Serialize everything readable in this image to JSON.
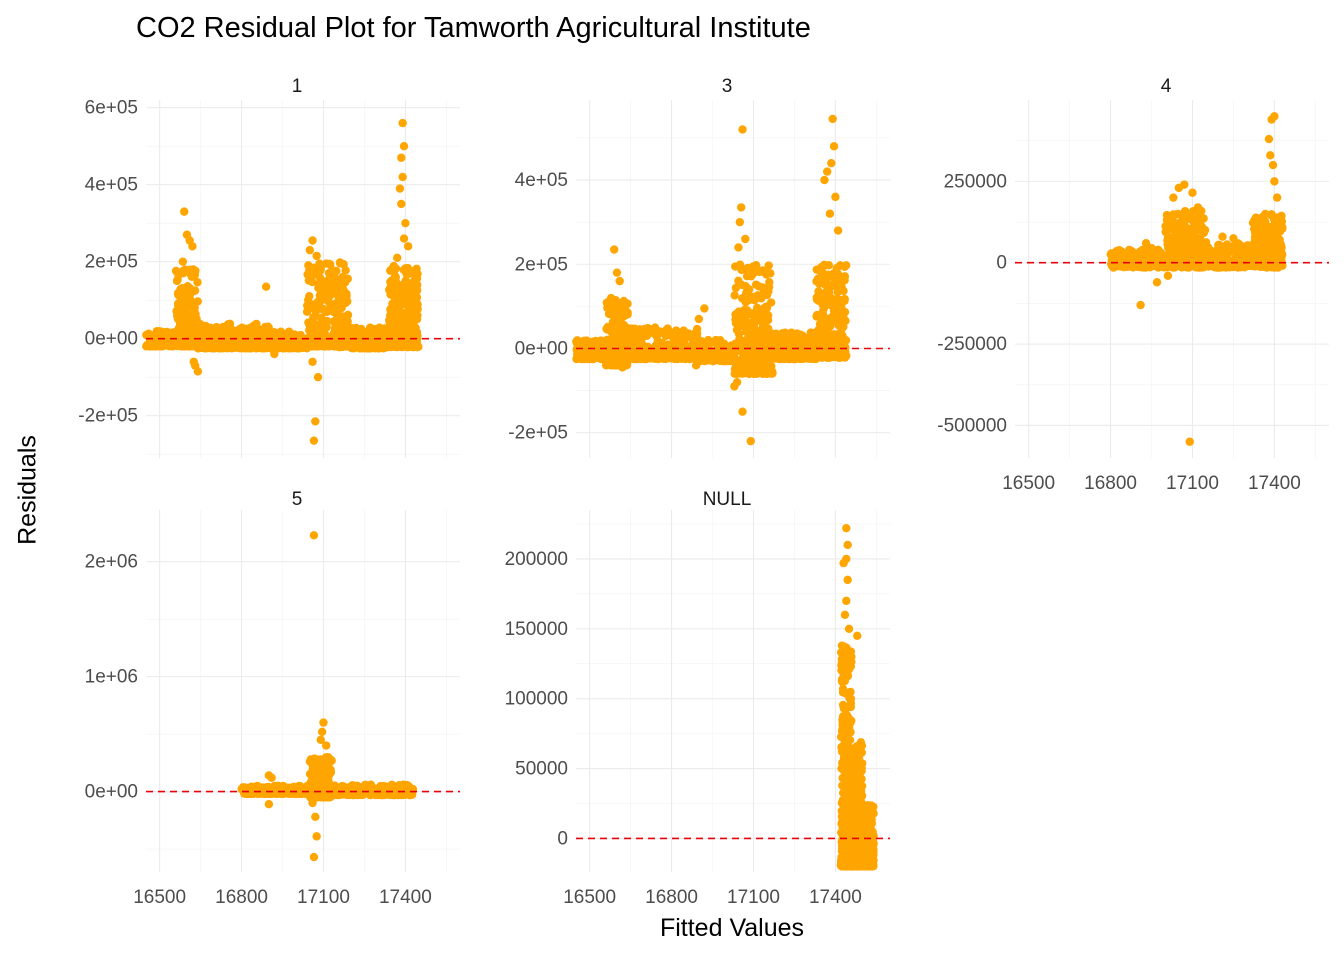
{
  "chart_data": {
    "type": "scatter",
    "title": "CO2 Residual Plot for Tamworth Agricultural Institute",
    "xlabel": "Fitted Values",
    "ylabel": "Residuals",
    "facet_layout": "3 columns x 2 rows, shared x axis, free y axis",
    "point_color": "#FFA500",
    "reference_line": {
      "y": 0,
      "color": "#E8000B",
      "style": "dashed"
    },
    "grid": true,
    "x_ticks": [
      16500,
      16800,
      17100,
      17400
    ],
    "xlim": [
      16450,
      17600
    ],
    "panels": [
      {
        "label": "1",
        "ylim": [
          -310000,
          620000
        ],
        "y_ticks": [
          -200000,
          0,
          200000,
          400000,
          600000
        ],
        "y_tick_labels": [
          "-2e+05",
          "0e+00",
          "2e+05",
          "4e+05",
          "6e+05"
        ],
        "show_x_axis": false,
        "clusters": [
          {
            "x": [
              16450,
              16560
            ],
            "y": [
              -20000,
              20000
            ],
            "n": 120
          },
          {
            "x": [
              16560,
              16640
            ],
            "y": [
              -20000,
              180000
            ],
            "n": 220
          },
          {
            "x": [
              16640,
              16900
            ],
            "y": [
              -25000,
              40000
            ],
            "n": 260
          },
          {
            "x": [
              16900,
              17040
            ],
            "y": [
              -25000,
              20000
            ],
            "n": 120
          },
          {
            "x": [
              17040,
              17190
            ],
            "y": [
              -20000,
              200000
            ],
            "n": 280
          },
          {
            "x": [
              17190,
              17340
            ],
            "y": [
              -25000,
              30000
            ],
            "n": 180
          },
          {
            "x": [
              17340,
              17445
            ],
            "y": [
              -20000,
              190000
            ],
            "n": 280
          },
          {
            "x": [
              17150,
              17450
            ],
            "y": [
              -22000,
              -15000
            ],
            "n": 80
          }
        ],
        "points": [
          [
            16590,
            330000
          ],
          [
            16600,
            270000
          ],
          [
            16610,
            255000
          ],
          [
            16620,
            240000
          ],
          [
            16585,
            200000
          ],
          [
            16625,
            -60000
          ],
          [
            16640,
            -85000
          ],
          [
            16630,
            -70000
          ],
          [
            16890,
            135000
          ],
          [
            16920,
            -40000
          ],
          [
            17060,
            255000
          ],
          [
            17050,
            230000
          ],
          [
            17075,
            215000
          ],
          [
            17110,
            195000
          ],
          [
            17090,
            180000
          ],
          [
            17140,
            160000
          ],
          [
            17060,
            -60000
          ],
          [
            17080,
            -100000
          ],
          [
            17070,
            -215000
          ],
          [
            17065,
            -265000
          ],
          [
            17390,
            560000
          ],
          [
            17395,
            500000
          ],
          [
            17385,
            470000
          ],
          [
            17390,
            420000
          ],
          [
            17380,
            390000
          ],
          [
            17385,
            350000
          ],
          [
            17400,
            300000
          ],
          [
            17395,
            260000
          ],
          [
            17410,
            240000
          ],
          [
            17370,
            210000
          ]
        ]
      },
      {
        "label": "3",
        "ylim": [
          -260000,
          590000
        ],
        "y_ticks": [
          -200000,
          0,
          200000,
          400000
        ],
        "y_tick_labels": [
          "-2e+05",
          "0e+00",
          "2e+05",
          "4e+05"
        ],
        "show_x_axis": false,
        "clusters": [
          {
            "x": [
              16450,
              16560
            ],
            "y": [
              -25000,
              20000
            ],
            "n": 120
          },
          {
            "x": [
              16560,
              16640
            ],
            "y": [
              -40000,
              120000
            ],
            "n": 200
          },
          {
            "x": [
              16640,
              16900
            ],
            "y": [
              -25000,
              50000
            ],
            "n": 240
          },
          {
            "x": [
              16900,
              17030
            ],
            "y": [
              -30000,
              20000
            ],
            "n": 120
          },
          {
            "x": [
              17030,
              17170
            ],
            "y": [
              -60000,
              200000
            ],
            "n": 280
          },
          {
            "x": [
              17170,
              17330
            ],
            "y": [
              -25000,
              40000
            ],
            "n": 160
          },
          {
            "x": [
              17330,
              17440
            ],
            "y": [
              -20000,
              200000
            ],
            "n": 260
          },
          {
            "x": [
              17150,
              17445
            ],
            "y": [
              -22000,
              -15000
            ],
            "n": 80
          }
        ],
        "points": [
          [
            16590,
            235000
          ],
          [
            16600,
            180000
          ],
          [
            16610,
            160000
          ],
          [
            16620,
            -45000
          ],
          [
            16610,
            -35000
          ],
          [
            16920,
            95000
          ],
          [
            16900,
            70000
          ],
          [
            16890,
            -40000
          ],
          [
            17060,
            520000
          ],
          [
            17055,
            335000
          ],
          [
            17050,
            300000
          ],
          [
            17070,
            260000
          ],
          [
            17045,
            240000
          ],
          [
            17110,
            195000
          ],
          [
            17030,
            -90000
          ],
          [
            17040,
            -80000
          ],
          [
            17060,
            -150000
          ],
          [
            17090,
            -220000
          ],
          [
            17390,
            545000
          ],
          [
            17395,
            480000
          ],
          [
            17385,
            440000
          ],
          [
            17370,
            420000
          ],
          [
            17360,
            400000
          ],
          [
            17400,
            360000
          ],
          [
            17380,
            320000
          ],
          [
            17410,
            280000
          ]
        ]
      },
      {
        "label": "4",
        "ylim": [
          -600000,
          500000
        ],
        "y_ticks": [
          -500000,
          -250000,
          0,
          250000
        ],
        "y_tick_labels": [
          "-500000",
          "-250000",
          "0",
          "250000"
        ],
        "show_x_axis": true,
        "clusters": [
          {
            "x": [
              16800,
              17000
            ],
            "y": [
              -10000,
              40000
            ],
            "n": 200
          },
          {
            "x": [
              17000,
              17150
            ],
            "y": [
              -10000,
              160000
            ],
            "n": 320
          },
          {
            "x": [
              17150,
              17320
            ],
            "y": [
              -10000,
              60000
            ],
            "n": 220
          },
          {
            "x": [
              17320,
              17430
            ],
            "y": [
              -10000,
              150000
            ],
            "n": 260
          },
          {
            "x": [
              16800,
              17430
            ],
            "y": [
              -15000,
              -5000
            ],
            "n": 80
          }
        ],
        "points": [
          [
            16930,
            60000
          ],
          [
            16950,
            45000
          ],
          [
            16910,
            -130000
          ],
          [
            16970,
            -60000
          ],
          [
            17010,
            -40000
          ],
          [
            17030,
            200000
          ],
          [
            17050,
            230000
          ],
          [
            17070,
            240000
          ],
          [
            17100,
            215000
          ],
          [
            17120,
            170000
          ],
          [
            17210,
            80000
          ],
          [
            17250,
            75000
          ],
          [
            17090,
            -550000
          ],
          [
            17400,
            450000
          ],
          [
            17390,
            440000
          ],
          [
            17380,
            380000
          ],
          [
            17385,
            330000
          ],
          [
            17395,
            300000
          ],
          [
            17400,
            250000
          ],
          [
            17410,
            200000
          ]
        ]
      },
      {
        "label": "5",
        "ylim": [
          -700000,
          2450000
        ],
        "y_ticks": [
          0,
          1000000,
          2000000
        ],
        "y_tick_labels": [
          "0e+00",
          "1e+06",
          "2e+06"
        ],
        "show_x_axis": true,
        "clusters": [
          {
            "x": [
              16800,
              17050
            ],
            "y": [
              -20000,
              50000
            ],
            "n": 200
          },
          {
            "x": [
              17050,
              17130
            ],
            "y": [
              -50000,
              300000
            ],
            "n": 280
          },
          {
            "x": [
              17130,
              17430
            ],
            "y": [
              -30000,
              60000
            ],
            "n": 260
          }
        ],
        "points": [
          [
            16900,
            140000
          ],
          [
            16910,
            120000
          ],
          [
            16900,
            -110000
          ],
          [
            17100,
            600000
          ],
          [
            17095,
            520000
          ],
          [
            17090,
            450000
          ],
          [
            17110,
            400000
          ],
          [
            17060,
            -100000
          ],
          [
            17070,
            -220000
          ],
          [
            17075,
            -390000
          ],
          [
            17065,
            -570000
          ],
          [
            17065,
            2230000
          ]
        ]
      },
      {
        "label": "NULL",
        "ylim": [
          -24000,
          235000
        ],
        "y_ticks": [
          0,
          50000,
          100000,
          150000,
          200000
        ],
        "y_tick_labels": [
          "0",
          "50000",
          "100000",
          "150000",
          "200000"
        ],
        "show_x_axis": true,
        "clusters": [
          {
            "x": [
              17420,
              17460
            ],
            "y": [
              -20000,
              140000
            ],
            "n": 320
          },
          {
            "x": [
              17460,
              17500
            ],
            "y": [
              -20000,
              70000
            ],
            "n": 240
          },
          {
            "x": [
              17500,
              17540
            ],
            "y": [
              -20000,
              25000
            ],
            "n": 200
          }
        ],
        "points": [
          [
            17440,
            222000
          ],
          [
            17445,
            210000
          ],
          [
            17440,
            200000
          ],
          [
            17430,
            197000
          ],
          [
            17445,
            185000
          ],
          [
            17440,
            170000
          ],
          [
            17435,
            160000
          ],
          [
            17480,
            145000
          ],
          [
            17450,
            150000
          ]
        ]
      }
    ]
  }
}
